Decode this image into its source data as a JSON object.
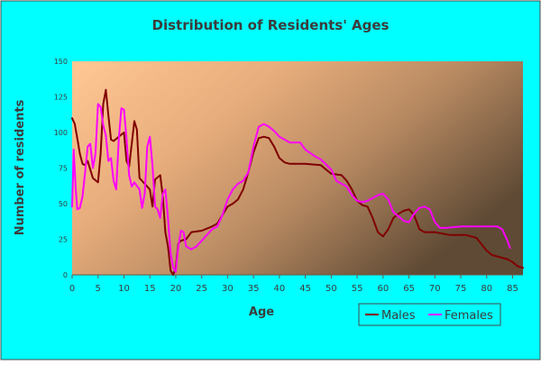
{
  "colors": {
    "background": "#00ffff",
    "border": "#4a4a4a",
    "title": "#3c3c3c",
    "males": "#800000",
    "females": "#ff00ff",
    "gradient_start": "#ffc894",
    "gradient_end": "#5f4a35"
  },
  "chart_data": {
    "type": "line",
    "title": "Distribution of Residents' Ages",
    "xlabel": "Age",
    "ylabel": "Number of residents",
    "xlim": [
      0,
      87
    ],
    "ylim": [
      0,
      150
    ],
    "xticks": [
      0,
      5,
      10,
      15,
      20,
      25,
      30,
      35,
      40,
      45,
      50,
      55,
      60,
      65,
      70,
      75,
      80,
      85
    ],
    "yticks": [
      0,
      25,
      50,
      75,
      100,
      125,
      150
    ],
    "grid": false,
    "legend": "bottom-right",
    "series": [
      {
        "name": "Males",
        "color": "#800000",
        "points": [
          [
            0,
            110
          ],
          [
            0.5,
            106
          ],
          [
            1,
            96
          ],
          [
            1.5,
            85
          ],
          [
            2,
            78
          ],
          [
            2.5,
            77
          ],
          [
            3,
            80
          ],
          [
            4,
            68
          ],
          [
            5,
            65
          ],
          [
            5.5,
            85
          ],
          [
            6,
            120
          ],
          [
            6.5,
            130
          ],
          [
            7,
            112
          ],
          [
            7.5,
            95
          ],
          [
            8,
            94
          ],
          [
            9,
            97
          ],
          [
            10,
            100
          ],
          [
            10.5,
            80
          ],
          [
            11,
            76
          ],
          [
            11.5,
            92
          ],
          [
            12,
            108
          ],
          [
            12.5,
            102
          ],
          [
            13,
            68
          ],
          [
            14,
            64
          ],
          [
            15,
            60
          ],
          [
            15.5,
            48
          ],
          [
            16,
            67
          ],
          [
            17,
            70
          ],
          [
            17.5,
            55
          ],
          [
            18,
            30
          ],
          [
            18.5,
            20
          ],
          [
            19,
            3
          ],
          [
            19.5,
            0
          ],
          [
            20,
            5
          ],
          [
            20.5,
            22
          ],
          [
            21,
            24
          ],
          [
            22,
            25
          ],
          [
            23,
            30
          ],
          [
            25,
            31
          ],
          [
            27,
            34
          ],
          [
            28,
            36
          ],
          [
            29,
            42
          ],
          [
            30,
            48
          ],
          [
            31,
            50
          ],
          [
            32,
            53
          ],
          [
            33,
            60
          ],
          [
            34,
            72
          ],
          [
            35,
            86
          ],
          [
            36,
            96
          ],
          [
            37,
            97
          ],
          [
            38,
            96
          ],
          [
            39,
            90
          ],
          [
            40,
            82
          ],
          [
            41,
            79
          ],
          [
            42,
            78
          ],
          [
            45,
            78
          ],
          [
            48,
            77
          ],
          [
            49,
            74
          ],
          [
            50,
            71
          ],
          [
            52,
            70
          ],
          [
            53,
            66
          ],
          [
            54,
            60
          ],
          [
            55,
            52
          ],
          [
            56,
            49
          ],
          [
            57,
            48
          ],
          [
            58,
            40
          ],
          [
            59,
            30
          ],
          [
            60,
            27
          ],
          [
            61,
            32
          ],
          [
            62,
            40
          ],
          [
            63,
            43
          ],
          [
            64,
            45
          ],
          [
            65,
            46
          ],
          [
            66,
            42
          ],
          [
            67,
            32
          ],
          [
            68,
            30
          ],
          [
            70,
            30
          ],
          [
            73,
            28
          ],
          [
            76,
            28
          ],
          [
            78,
            26
          ],
          [
            80,
            17
          ],
          [
            81,
            14
          ],
          [
            82,
            13
          ],
          [
            84,
            11
          ],
          [
            85,
            9
          ],
          [
            86,
            6
          ],
          [
            87,
            5
          ]
        ]
      },
      {
        "name": "Females",
        "color": "#ff00ff",
        "points": [
          [
            0,
            48
          ],
          [
            0.3,
            88
          ],
          [
            0.7,
            60
          ],
          [
            1,
            46
          ],
          [
            1.5,
            47
          ],
          [
            2,
            55
          ],
          [
            2.5,
            72
          ],
          [
            3,
            90
          ],
          [
            3.5,
            92
          ],
          [
            4,
            75
          ],
          [
            4.5,
            85
          ],
          [
            5,
            120
          ],
          [
            5.5,
            118
          ],
          [
            6,
            105
          ],
          [
            6.5,
            98
          ],
          [
            7,
            80
          ],
          [
            7.5,
            82
          ],
          [
            8,
            66
          ],
          [
            8.5,
            60
          ],
          [
            9,
            95
          ],
          [
            9.5,
            117
          ],
          [
            10,
            116
          ],
          [
            10.5,
            96
          ],
          [
            11,
            70
          ],
          [
            11.5,
            62
          ],
          [
            12,
            65
          ],
          [
            13,
            60
          ],
          [
            13.5,
            47
          ],
          [
            14,
            57
          ],
          [
            14.5,
            90
          ],
          [
            15,
            97
          ],
          [
            15.5,
            77
          ],
          [
            16,
            48
          ],
          [
            16.5,
            46
          ],
          [
            17,
            40
          ],
          [
            17.5,
            57
          ],
          [
            18,
            60
          ],
          [
            18.5,
            40
          ],
          [
            19,
            15
          ],
          [
            19.5,
            5
          ],
          [
            20,
            2
          ],
          [
            20.5,
            20
          ],
          [
            21,
            31
          ],
          [
            21.5,
            30
          ],
          [
            22,
            20
          ],
          [
            23,
            18
          ],
          [
            24,
            20
          ],
          [
            25,
            24
          ],
          [
            26,
            28
          ],
          [
            27,
            32
          ],
          [
            28,
            34
          ],
          [
            29,
            42
          ],
          [
            30,
            53
          ],
          [
            31,
            60
          ],
          [
            32,
            64
          ],
          [
            33,
            66
          ],
          [
            34,
            72
          ],
          [
            35,
            90
          ],
          [
            36,
            104
          ],
          [
            37,
            106
          ],
          [
            38,
            104
          ],
          [
            39,
            101
          ],
          [
            40,
            97
          ],
          [
            41,
            95
          ],
          [
            42,
            93
          ],
          [
            44,
            93
          ],
          [
            45,
            88
          ],
          [
            47,
            83
          ],
          [
            48,
            81
          ],
          [
            50,
            74
          ],
          [
            51,
            66
          ],
          [
            52,
            64
          ],
          [
            53,
            62
          ],
          [
            54,
            56
          ],
          [
            55,
            52
          ],
          [
            56,
            51
          ],
          [
            57,
            52
          ],
          [
            58,
            54
          ],
          [
            59,
            56
          ],
          [
            60,
            57
          ],
          [
            61,
            53
          ],
          [
            62,
            44
          ],
          [
            63,
            41
          ],
          [
            64,
            38
          ],
          [
            65,
            37
          ],
          [
            66,
            43
          ],
          [
            67,
            47
          ],
          [
            68,
            48
          ],
          [
            69,
            46
          ],
          [
            70,
            37
          ],
          [
            71,
            33
          ],
          [
            72,
            33
          ],
          [
            75,
            34
          ],
          [
            80,
            34
          ],
          [
            81,
            34
          ],
          [
            82,
            34
          ],
          [
            83,
            32
          ],
          [
            84,
            24
          ],
          [
            84.5,
            19
          ]
        ]
      }
    ]
  }
}
